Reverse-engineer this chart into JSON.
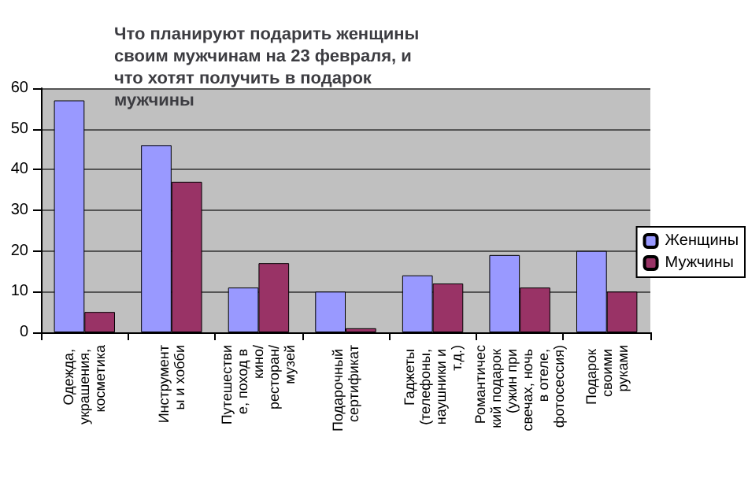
{
  "chart_data": {
    "type": "bar",
    "title": "Что планируют подарить женщины своим мужчинам на 23 февраля, и что хотят получить в подарок мужчины",
    "categories": [
      "Одежда, украшения, косметика",
      "Инструменты и хобби",
      "Путешествие, поход в кино/ресторан/музей",
      "Подарочный сертификат",
      "Гаджеты (телефоны, наушники и т.д.)",
      "Романтический подарок (ужин при свечах, ночь в отеле, фотосессия)",
      "Подарок своими руками"
    ],
    "series": [
      {
        "name": "Женщины",
        "color": "#9999ff",
        "values": [
          57,
          46,
          11,
          10,
          14,
          19,
          20
        ]
      },
      {
        "name": "Мужчины",
        "color": "#993366",
        "values": [
          5,
          37,
          17,
          1,
          12,
          11,
          10
        ]
      }
    ],
    "ylim": [
      0,
      60
    ],
    "yticks": [
      0,
      10,
      20,
      30,
      40,
      50,
      60
    ],
    "grid": "y",
    "legend": "right"
  }
}
